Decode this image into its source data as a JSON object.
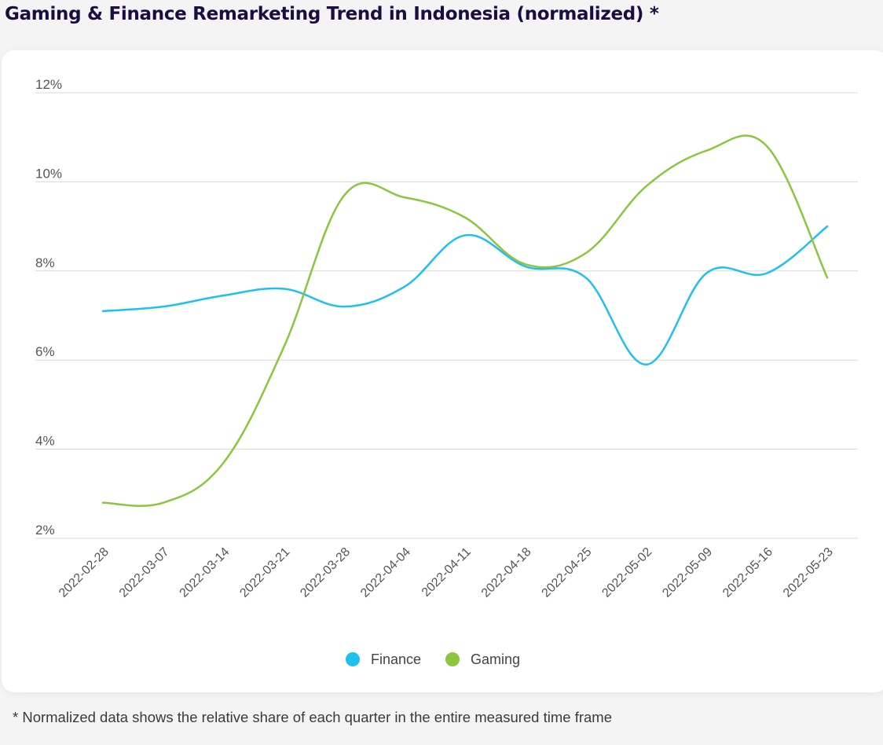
{
  "title": "Gaming & Finance Remarketing Trend in Indonesia (normalized) *",
  "footnote": "* Normalized data shows the relative share of each quarter in the entire measured time frame",
  "colors": {
    "finance": "#1ec0f0",
    "gaming": "#8cc63f",
    "grid": "#d9d9d9",
    "axis_text": "#555555"
  },
  "chart_data": {
    "type": "line",
    "x": [
      "2022-02-28",
      "2022-03-07",
      "2022-03-14",
      "2022-03-21",
      "2022-03-28",
      "2022-04-04",
      "2022-04-11",
      "2022-04-18",
      "2022-04-25",
      "2022-05-02",
      "2022-05-09",
      "2022-05-16",
      "2022-05-23"
    ],
    "yticks": [
      "2%",
      "4%",
      "6%",
      "8%",
      "10%",
      "12%"
    ],
    "ylim": [
      2,
      12
    ],
    "grid": true,
    "legend_position": "bottom-center",
    "series": [
      {
        "name": "Finance",
        "values": [
          7.1,
          7.2,
          7.45,
          7.6,
          7.2,
          7.65,
          8.8,
          8.1,
          7.85,
          5.9,
          7.95,
          7.95,
          9.0
        ]
      },
      {
        "name": "Gaming",
        "values": [
          2.8,
          2.8,
          3.7,
          6.3,
          9.7,
          9.65,
          9.2,
          8.15,
          8.4,
          9.9,
          10.7,
          10.8,
          7.85
        ]
      }
    ]
  }
}
